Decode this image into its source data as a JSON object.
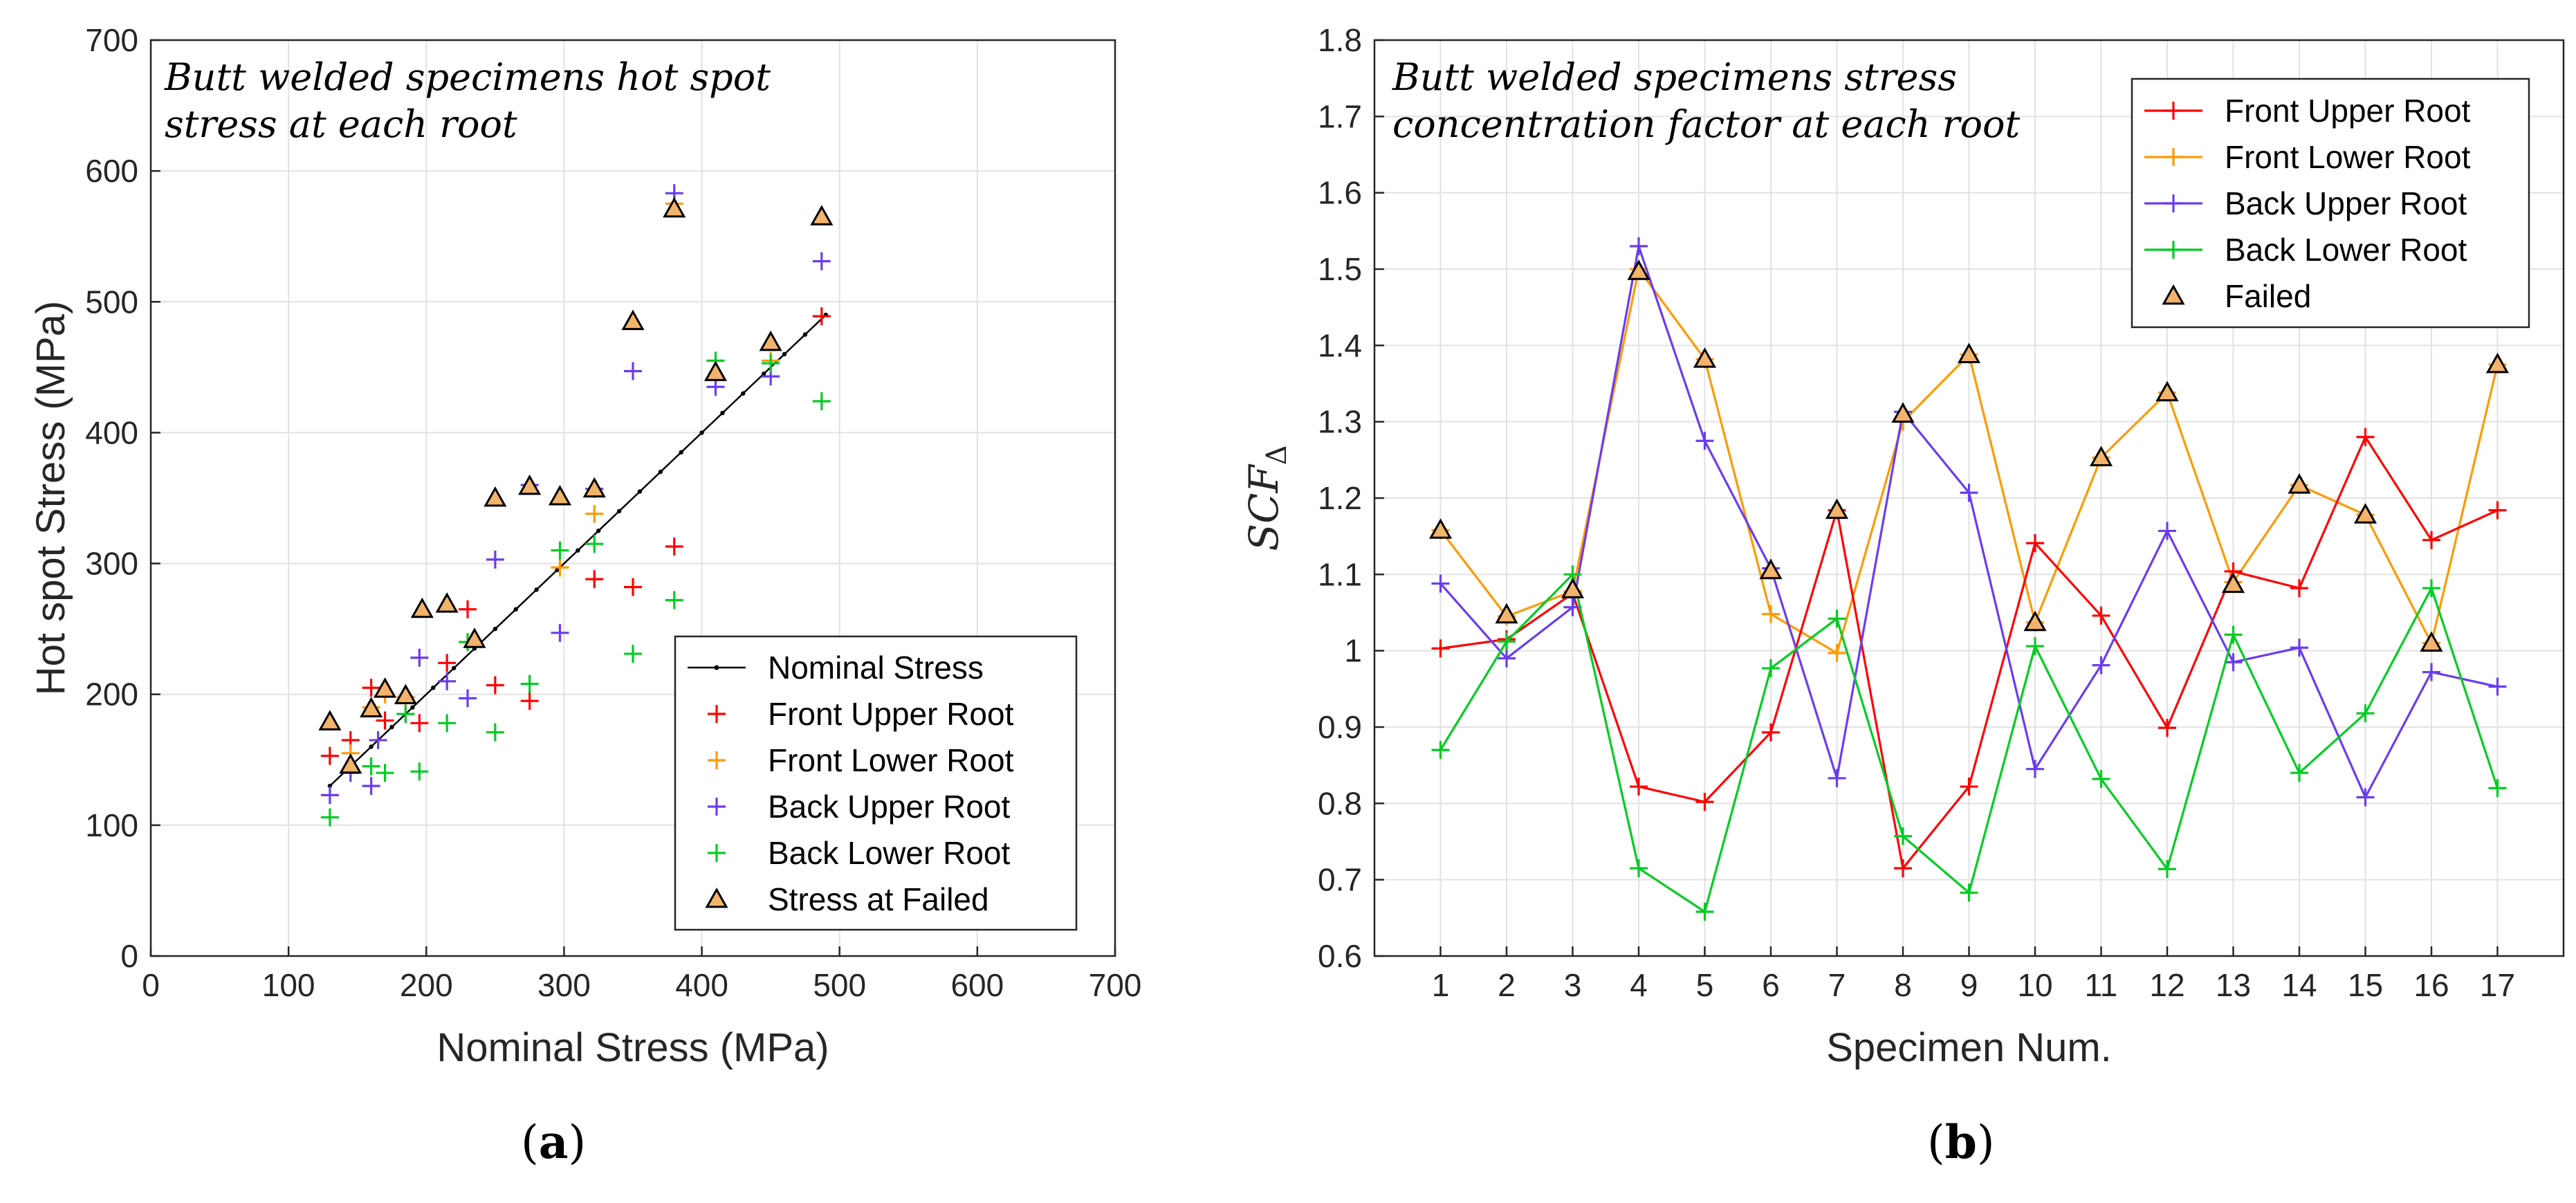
{
  "figure": {
    "panels": [
      {
        "id": "a",
        "caption_open": "(",
        "caption_letter": "a",
        "caption_close": ")"
      },
      {
        "id": "b",
        "caption_open": "(",
        "caption_letter": "b",
        "caption_close": ")"
      }
    ]
  },
  "colors": {
    "front_upper": "#ff0000",
    "front_lower": "#ff9900",
    "back_upper": "#6a3cf0",
    "back_lower": "#00cc22",
    "nominal": "#000000",
    "failed_fill": "#f2b36a",
    "failed_stroke": "#000000",
    "grid": "#e2e2e2"
  },
  "chart_data": [
    {
      "type": "scatter",
      "title_line1": "Butt welded specimens hot spot",
      "title_line2": "stress at each root",
      "xlabel": "Nominal Stress (MPa)",
      "ylabel": "Hot spot Stress (MPa)",
      "xlim": [
        0,
        700
      ],
      "ylim": [
        0,
        700
      ],
      "xticks": [
        0,
        100,
        200,
        300,
        400,
        500,
        600,
        700
      ],
      "yticks": [
        0,
        100,
        200,
        300,
        400,
        500,
        600,
        700
      ],
      "grid": true,
      "legend_position": "bottom-right",
      "legend": [
        {
          "label": "Nominal Stress",
          "series": "nominal"
        },
        {
          "label": "Front Upper Root",
          "series": "front_upper"
        },
        {
          "label": "Front Lower Root",
          "series": "front_lower"
        },
        {
          "label": "Back Upper Root",
          "series": "back_upper"
        },
        {
          "label": "Back Lower Root",
          "series": "back_lower"
        },
        {
          "label": "Stress at Failed",
          "series": "failed"
        }
      ],
      "nominal_line": {
        "x": [
          130,
          490
        ],
        "y": [
          130,
          490
        ]
      },
      "series": [
        {
          "name": "Front Upper Root",
          "key": "front_upper",
          "points": [
            [
              130,
              153
            ],
            [
              145,
              165
            ],
            [
              160,
              205
            ],
            [
              170,
              180
            ],
            [
              195,
              178
            ],
            [
              215,
              224
            ],
            [
              230,
              265
            ],
            [
              250,
              207
            ],
            [
              275,
              195
            ],
            [
              322,
              288
            ],
            [
              350,
              282
            ],
            [
              380,
              313
            ],
            [
              487,
              489
            ]
          ]
        },
        {
          "name": "Front Lower Root",
          "key": "front_lower",
          "points": [
            [
              145,
              155
            ],
            [
              160,
              190
            ],
            [
              170,
              200
            ],
            [
              185,
              198
            ],
            [
              230,
              240
            ],
            [
              297,
              297
            ],
            [
              322,
              338
            ],
            [
              380,
              575
            ],
            [
              450,
              455
            ]
          ]
        },
        {
          "name": "Back Upper Root",
          "key": "back_upper",
          "points": [
            [
              130,
              123
            ],
            [
              145,
              140
            ],
            [
              160,
              130
            ],
            [
              165,
              165
            ],
            [
              185,
              185
            ],
            [
              195,
              228
            ],
            [
              215,
              210
            ],
            [
              230,
              197
            ],
            [
              250,
              303
            ],
            [
              275,
              360
            ],
            [
              297,
              247
            ],
            [
              322,
              357
            ],
            [
              350,
              447
            ],
            [
              380,
              583
            ],
            [
              410,
              435
            ],
            [
              450,
              443
            ],
            [
              487,
              531
            ]
          ]
        },
        {
          "name": "Back Lower Root",
          "key": "back_lower",
          "points": [
            [
              130,
              106
            ],
            [
              160,
              145
            ],
            [
              170,
              140
            ],
            [
              185,
              185
            ],
            [
              195,
              141
            ],
            [
              215,
              178
            ],
            [
              230,
              240
            ],
            [
              250,
              171
            ],
            [
              275,
              208
            ],
            [
              297,
              310
            ],
            [
              322,
              315
            ],
            [
              350,
              231
            ],
            [
              380,
              272
            ],
            [
              410,
              455
            ],
            [
              450,
              453
            ],
            [
              487,
              424
            ]
          ]
        },
        {
          "name": "Stress at Failed",
          "key": "failed",
          "points": [
            [
              130,
              179
            ],
            [
              145,
              146
            ],
            [
              160,
              189
            ],
            [
              170,
              204
            ],
            [
              185,
              199
            ],
            [
              197,
              265
            ],
            [
              215,
              269
            ],
            [
              235,
              242
            ],
            [
              250,
              350
            ],
            [
              275,
              359
            ],
            [
              297,
              351
            ],
            [
              322,
              357
            ],
            [
              350,
              485
            ],
            [
              380,
              571
            ],
            [
              410,
              446
            ],
            [
              450,
              469
            ],
            [
              487,
              565
            ]
          ]
        }
      ]
    },
    {
      "type": "line",
      "title_line1": "Butt welded specimens stress",
      "title_line2": "concentration factor at each root",
      "xlabel": "Specimen Num.",
      "ylabel_base": "SCF",
      "ylabel_sub": "Δ",
      "categories": [
        "1",
        "2",
        "3",
        "4",
        "5",
        "6",
        "7",
        "8",
        "9",
        "10",
        "11",
        "12",
        "13",
        "14",
        "15",
        "16",
        "17"
      ],
      "ylim": [
        0.6,
        1.8
      ],
      "yticks": [
        0.6,
        0.7,
        0.8,
        0.9,
        1,
        1.1,
        1.2,
        1.3,
        1.4,
        1.5,
        1.6,
        1.7,
        1.8
      ],
      "ytick_labels": [
        "0.6",
        "0.7",
        "0.8",
        "0.9",
        "1",
        "1.1",
        "1.2",
        "1.3",
        "1.4",
        "1.5",
        "1.6",
        "1.7",
        "1.8"
      ],
      "grid": true,
      "legend_position": "top-right",
      "legend": [
        {
          "label": "Front Upper Root",
          "series": "front_upper"
        },
        {
          "label": "Front Lower Root",
          "series": "front_lower"
        },
        {
          "label": "Back Upper Root",
          "series": "back_upper"
        },
        {
          "label": "Back Lower Root",
          "series": "back_lower"
        },
        {
          "label": "Failed",
          "series": "failed"
        }
      ],
      "series": [
        {
          "name": "Front Upper Root",
          "key": "front_upper",
          "values": [
            1.003,
            1.015,
            1.075,
            0.822,
            0.802,
            0.893,
            1.184,
            0.715,
            0.822,
            1.141,
            1.046,
            0.899,
            1.104,
            1.082,
            1.28,
            1.145,
            1.184
          ]
        },
        {
          "name": "Front Lower Root",
          "key": "front_lower",
          "values": [
            1.158,
            1.045,
            1.078,
            1.5,
            1.382,
            1.048,
            0.997,
            1.3,
            1.388,
            1.037,
            1.253,
            1.338,
            1.09,
            1.217,
            1.178,
            1.01,
            1.375
          ]
        },
        {
          "name": "Back Upper Root",
          "key": "back_upper",
          "values": [
            1.088,
            0.99,
            1.057,
            1.53,
            1.275,
            1.108,
            0.833,
            1.313,
            1.207,
            0.845,
            0.981,
            1.157,
            0.985,
            1.004,
            0.808,
            0.972,
            0.953
          ]
        },
        {
          "name": "Back Lower Root",
          "key": "back_lower",
          "values": [
            0.87,
            1.012,
            1.1,
            0.715,
            0.658,
            0.977,
            1.042,
            0.757,
            0.683,
            1.006,
            0.832,
            0.714,
            1.021,
            0.84,
            0.918,
            1.082,
            0.82
          ]
        },
        {
          "name": "Failed",
          "key": "failed",
          "values": [
            1.158,
            1.047,
            1.08,
            1.497,
            1.382,
            1.105,
            1.184,
            1.31,
            1.388,
            1.037,
            1.253,
            1.338,
            1.087,
            1.217,
            1.178,
            1.01,
            1.375
          ]
        }
      ]
    }
  ]
}
